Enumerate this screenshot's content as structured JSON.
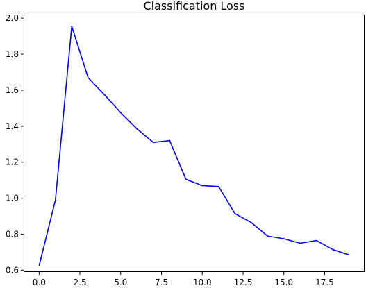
{
  "chart_data": {
    "type": "line",
    "title": "Classification Loss",
    "xlabel": "",
    "ylabel": "",
    "xlim": [
      -0.95,
      19.95
    ],
    "ylim": [
      0.59,
      2.02
    ],
    "x_ticks": [
      0.0,
      2.5,
      5.0,
      7.5,
      10.0,
      12.5,
      15.0,
      17.5
    ],
    "x_tick_labels": [
      "0.0",
      "2.5",
      "5.0",
      "7.5",
      "10.0",
      "12.5",
      "15.0",
      "17.5"
    ],
    "y_ticks": [
      0.6,
      0.8,
      1.0,
      1.2,
      1.4,
      1.6,
      1.8,
      2.0
    ],
    "y_tick_labels": [
      "0.6",
      "0.8",
      "1.0",
      "1.2",
      "1.4",
      "1.6",
      "1.8",
      "2.0"
    ],
    "grid": false,
    "series": [
      {
        "color": "#0000ff",
        "x": [
          0,
          1,
          2,
          3,
          4,
          5,
          6,
          7,
          8,
          9,
          10,
          11,
          12,
          13,
          14,
          15,
          16,
          17,
          18,
          19
        ],
        "y": [
          0.625,
          0.99,
          1.955,
          1.67,
          1.575,
          1.475,
          1.385,
          1.31,
          1.32,
          1.105,
          1.07,
          1.065,
          0.915,
          0.865,
          0.79,
          0.775,
          0.75,
          0.765,
          0.715,
          0.685
        ]
      }
    ]
  }
}
